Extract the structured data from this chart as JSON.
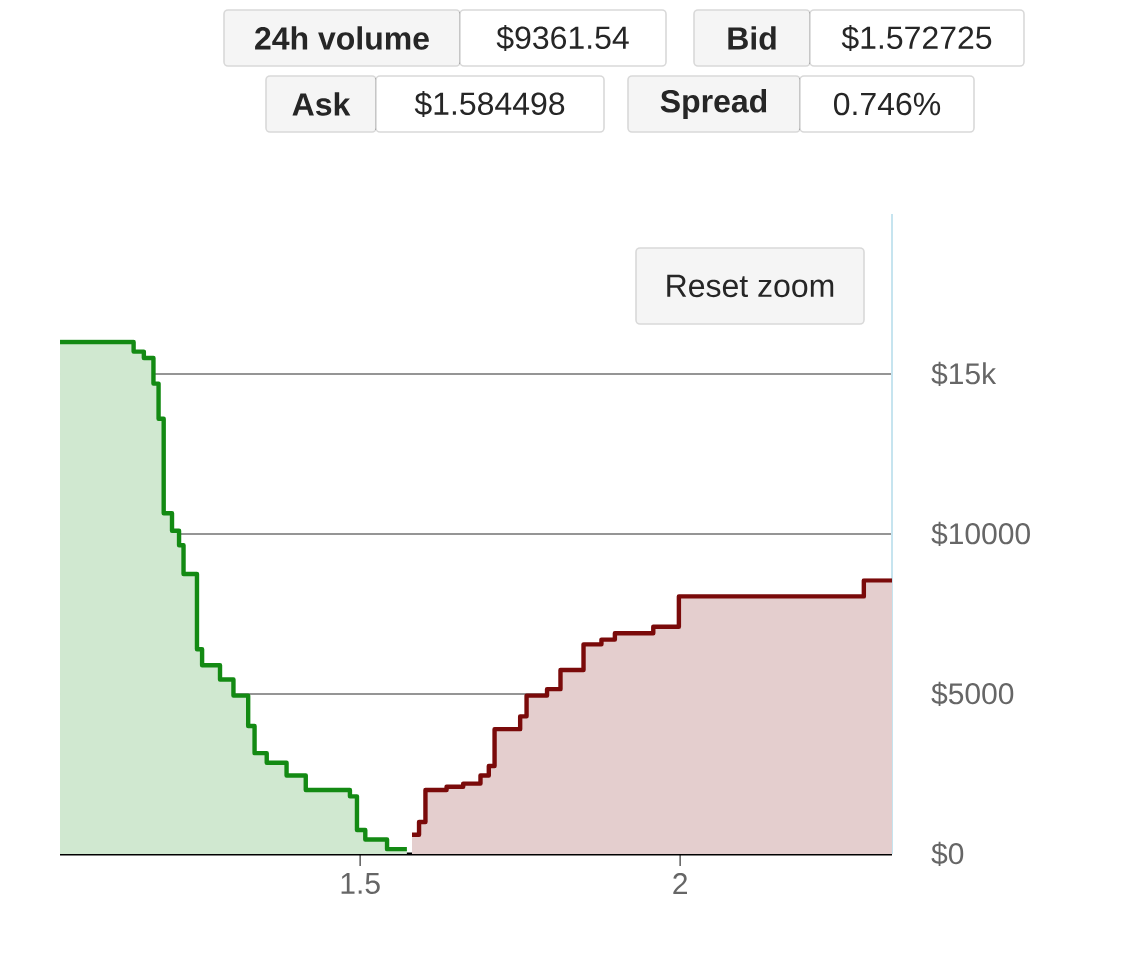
{
  "chart_data": {
    "type": "area",
    "xlim": [
      1.031,
      2.331
    ],
    "ylim": [
      0,
      20000
    ],
    "xticks": [
      1.5,
      2
    ],
    "yticks": [
      {
        "value": 0,
        "label": "$0"
      },
      {
        "value": 5000,
        "label": "$5000"
      },
      {
        "value": 10000,
        "label": "$10000"
      },
      {
        "value": 15000,
        "label": "$15k"
      }
    ],
    "grid": "y",
    "annotations": [
      "24h volume",
      "$9361.54",
      "Bid",
      "$1.572725",
      "Ask",
      "$1.584498",
      "Spread",
      "0.746%",
      "Reset zoom"
    ],
    "series": [
      {
        "color": "#138a13",
        "x": [
          1.031,
          1.146,
          1.146,
          1.162,
          1.162,
          1.177,
          1.177,
          1.185,
          1.185,
          1.193,
          1.193,
          1.206,
          1.206,
          1.217,
          1.217,
          1.224,
          1.224,
          1.245,
          1.245,
          1.253,
          1.253,
          1.281,
          1.281,
          1.302,
          1.302,
          1.325,
          1.325,
          1.335,
          1.335,
          1.354,
          1.354,
          1.385,
          1.385,
          1.415,
          1.415,
          1.484,
          1.484,
          1.495,
          1.495,
          1.508,
          1.508,
          1.542,
          1.542,
          1.573
        ],
        "values": [
          16000,
          16000,
          15700,
          15700,
          15500,
          15500,
          14700,
          14700,
          13600,
          13600,
          10650,
          10650,
          10100,
          10100,
          9650,
          9650,
          8750,
          8750,
          6400,
          6400,
          5900,
          5900,
          5450,
          5450,
          4950,
          4950,
          4000,
          4000,
          3150,
          3150,
          2850,
          2850,
          2450,
          2450,
          2000,
          2000,
          1800,
          1800,
          750,
          750,
          450,
          450,
          150,
          150
        ]
      },
      {
        "color": "#7a0a0a",
        "x": [
          1.581,
          1.592,
          1.592,
          1.602,
          1.602,
          1.635,
          1.635,
          1.661,
          1.661,
          1.688,
          1.688,
          1.701,
          1.701,
          1.71,
          1.71,
          1.75,
          1.75,
          1.76,
          1.76,
          1.792,
          1.792,
          1.813,
          1.813,
          1.849,
          1.849,
          1.877,
          1.877,
          1.898,
          1.898,
          1.958,
          1.958,
          1.998,
          1.998,
          2.287,
          2.287,
          2.331
        ],
        "values": [
          600,
          600,
          1000,
          1000,
          2000,
          2000,
          2100,
          2100,
          2200,
          2200,
          2450,
          2450,
          2750,
          2750,
          3900,
          3900,
          4300,
          4300,
          4950,
          4950,
          5150,
          5150,
          5750,
          5750,
          6550,
          6550,
          6700,
          6700,
          6900,
          6900,
          7100,
          7100,
          8050,
          8050,
          8550,
          8550
        ]
      }
    ]
  }
}
